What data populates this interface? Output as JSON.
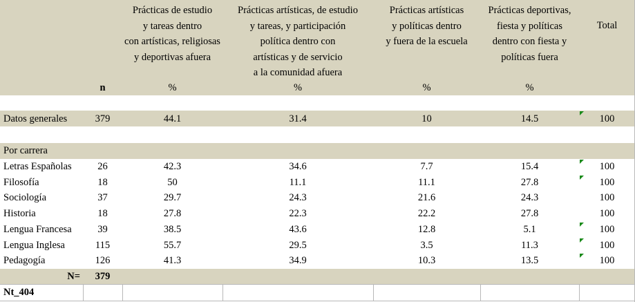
{
  "header": {
    "n": "n",
    "columns": [
      {
        "lines": [
          "Prácticas de estudio",
          "y tareas dentro",
          "con artísticas, religiosas",
          "y deportivas afuera"
        ],
        "unit": "%"
      },
      {
        "lines": [
          "Prácticas artísticas, de estudio",
          "y tareas,  y participación",
          "política dentro con",
          "artísticas y de servicio",
          "a la comunidad afuera"
        ],
        "unit": "%"
      },
      {
        "lines": [
          "Prácticas artísticas",
          "y políticas dentro",
          "y fuera de la escuela"
        ],
        "unit": "%"
      },
      {
        "lines": [
          "Prácticas deportivas,",
          "fiesta y políticas",
          "dentro con fiesta y",
          "políticas fuera"
        ],
        "unit": "%"
      },
      {
        "lines": [
          "Total"
        ]
      }
    ]
  },
  "general": {
    "label": "Datos generales",
    "n": 379,
    "values": [
      44.1,
      31.4,
      10,
      14.5,
      100
    ]
  },
  "section": "Por carrera",
  "rows": [
    {
      "label": "Letras Españolas",
      "n": 26,
      "values": [
        42.3,
        34.6,
        7.7,
        15.4,
        100
      ]
    },
    {
      "label": "Filosofía",
      "n": 18,
      "values": [
        50,
        11.1,
        11.1,
        27.8,
        100
      ]
    },
    {
      "label": "Sociología",
      "n": 37,
      "values": [
        29.7,
        24.3,
        21.6,
        24.3,
        100
      ]
    },
    {
      "label": "Historia",
      "n": 18,
      "values": [
        27.8,
        22.3,
        22.2,
        27.8,
        100
      ]
    },
    {
      "label": "Lengua Francesa",
      "n": 39,
      "values": [
        38.5,
        43.6,
        12.8,
        5.1,
        100
      ]
    },
    {
      "label": "Lengua Inglesa",
      "n": 115,
      "values": [
        55.7,
        29.5,
        3.5,
        11.3,
        100
      ]
    },
    {
      "label": "Pedagogía",
      "n": 126,
      "values": [
        41.3,
        34.9,
        10.3,
        13.5,
        100
      ]
    }
  ],
  "footer": {
    "label": "N=",
    "n": 379
  },
  "note": "Nt_404"
}
